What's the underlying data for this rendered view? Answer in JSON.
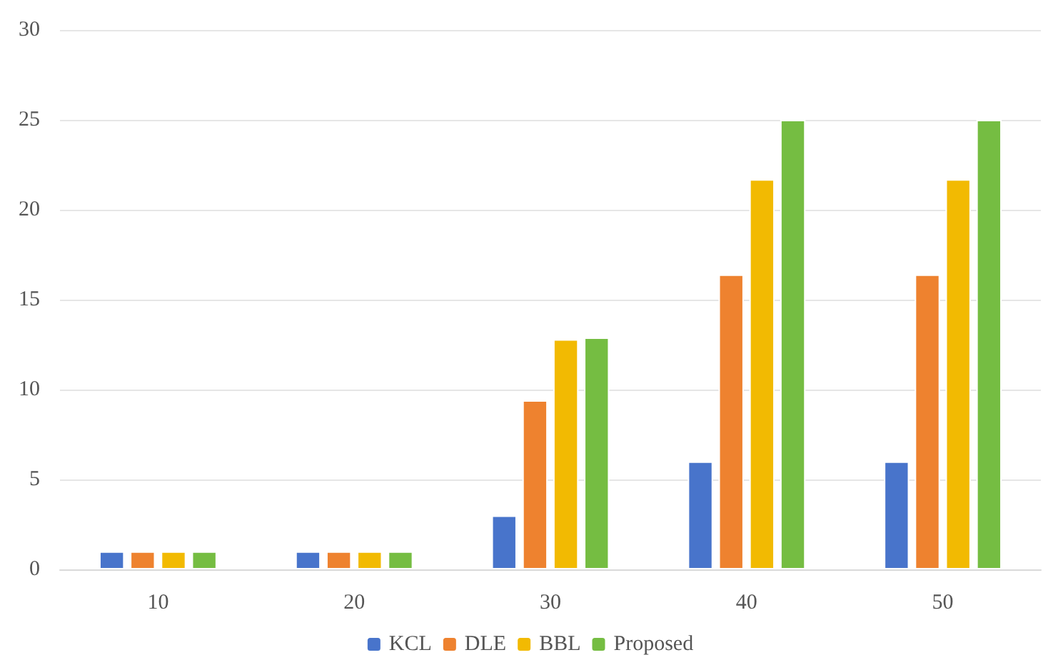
{
  "chart_data": {
    "type": "bar",
    "categories": [
      "10",
      "20",
      "30",
      "40",
      "50"
    ],
    "series": [
      {
        "name": "KCL",
        "color": "#4874cb",
        "values": [
          1,
          1,
          3,
          6,
          6
        ]
      },
      {
        "name": "DLE",
        "color": "#ee822f",
        "values": [
          1,
          1,
          9.4,
          16.4,
          16.4
        ]
      },
      {
        "name": "BBL",
        "color": "#f2ba02",
        "values": [
          1,
          1,
          12.8,
          21.7,
          21.7
        ]
      },
      {
        "name": "Proposed",
        "color": "#75bd42",
        "values": [
          1,
          1,
          12.9,
          25,
          25
        ]
      }
    ],
    "ylim": [
      0,
      30
    ],
    "yticks": [
      0,
      5,
      10,
      15,
      20,
      25,
      30
    ],
    "grid": "y",
    "legend": "bottom"
  }
}
